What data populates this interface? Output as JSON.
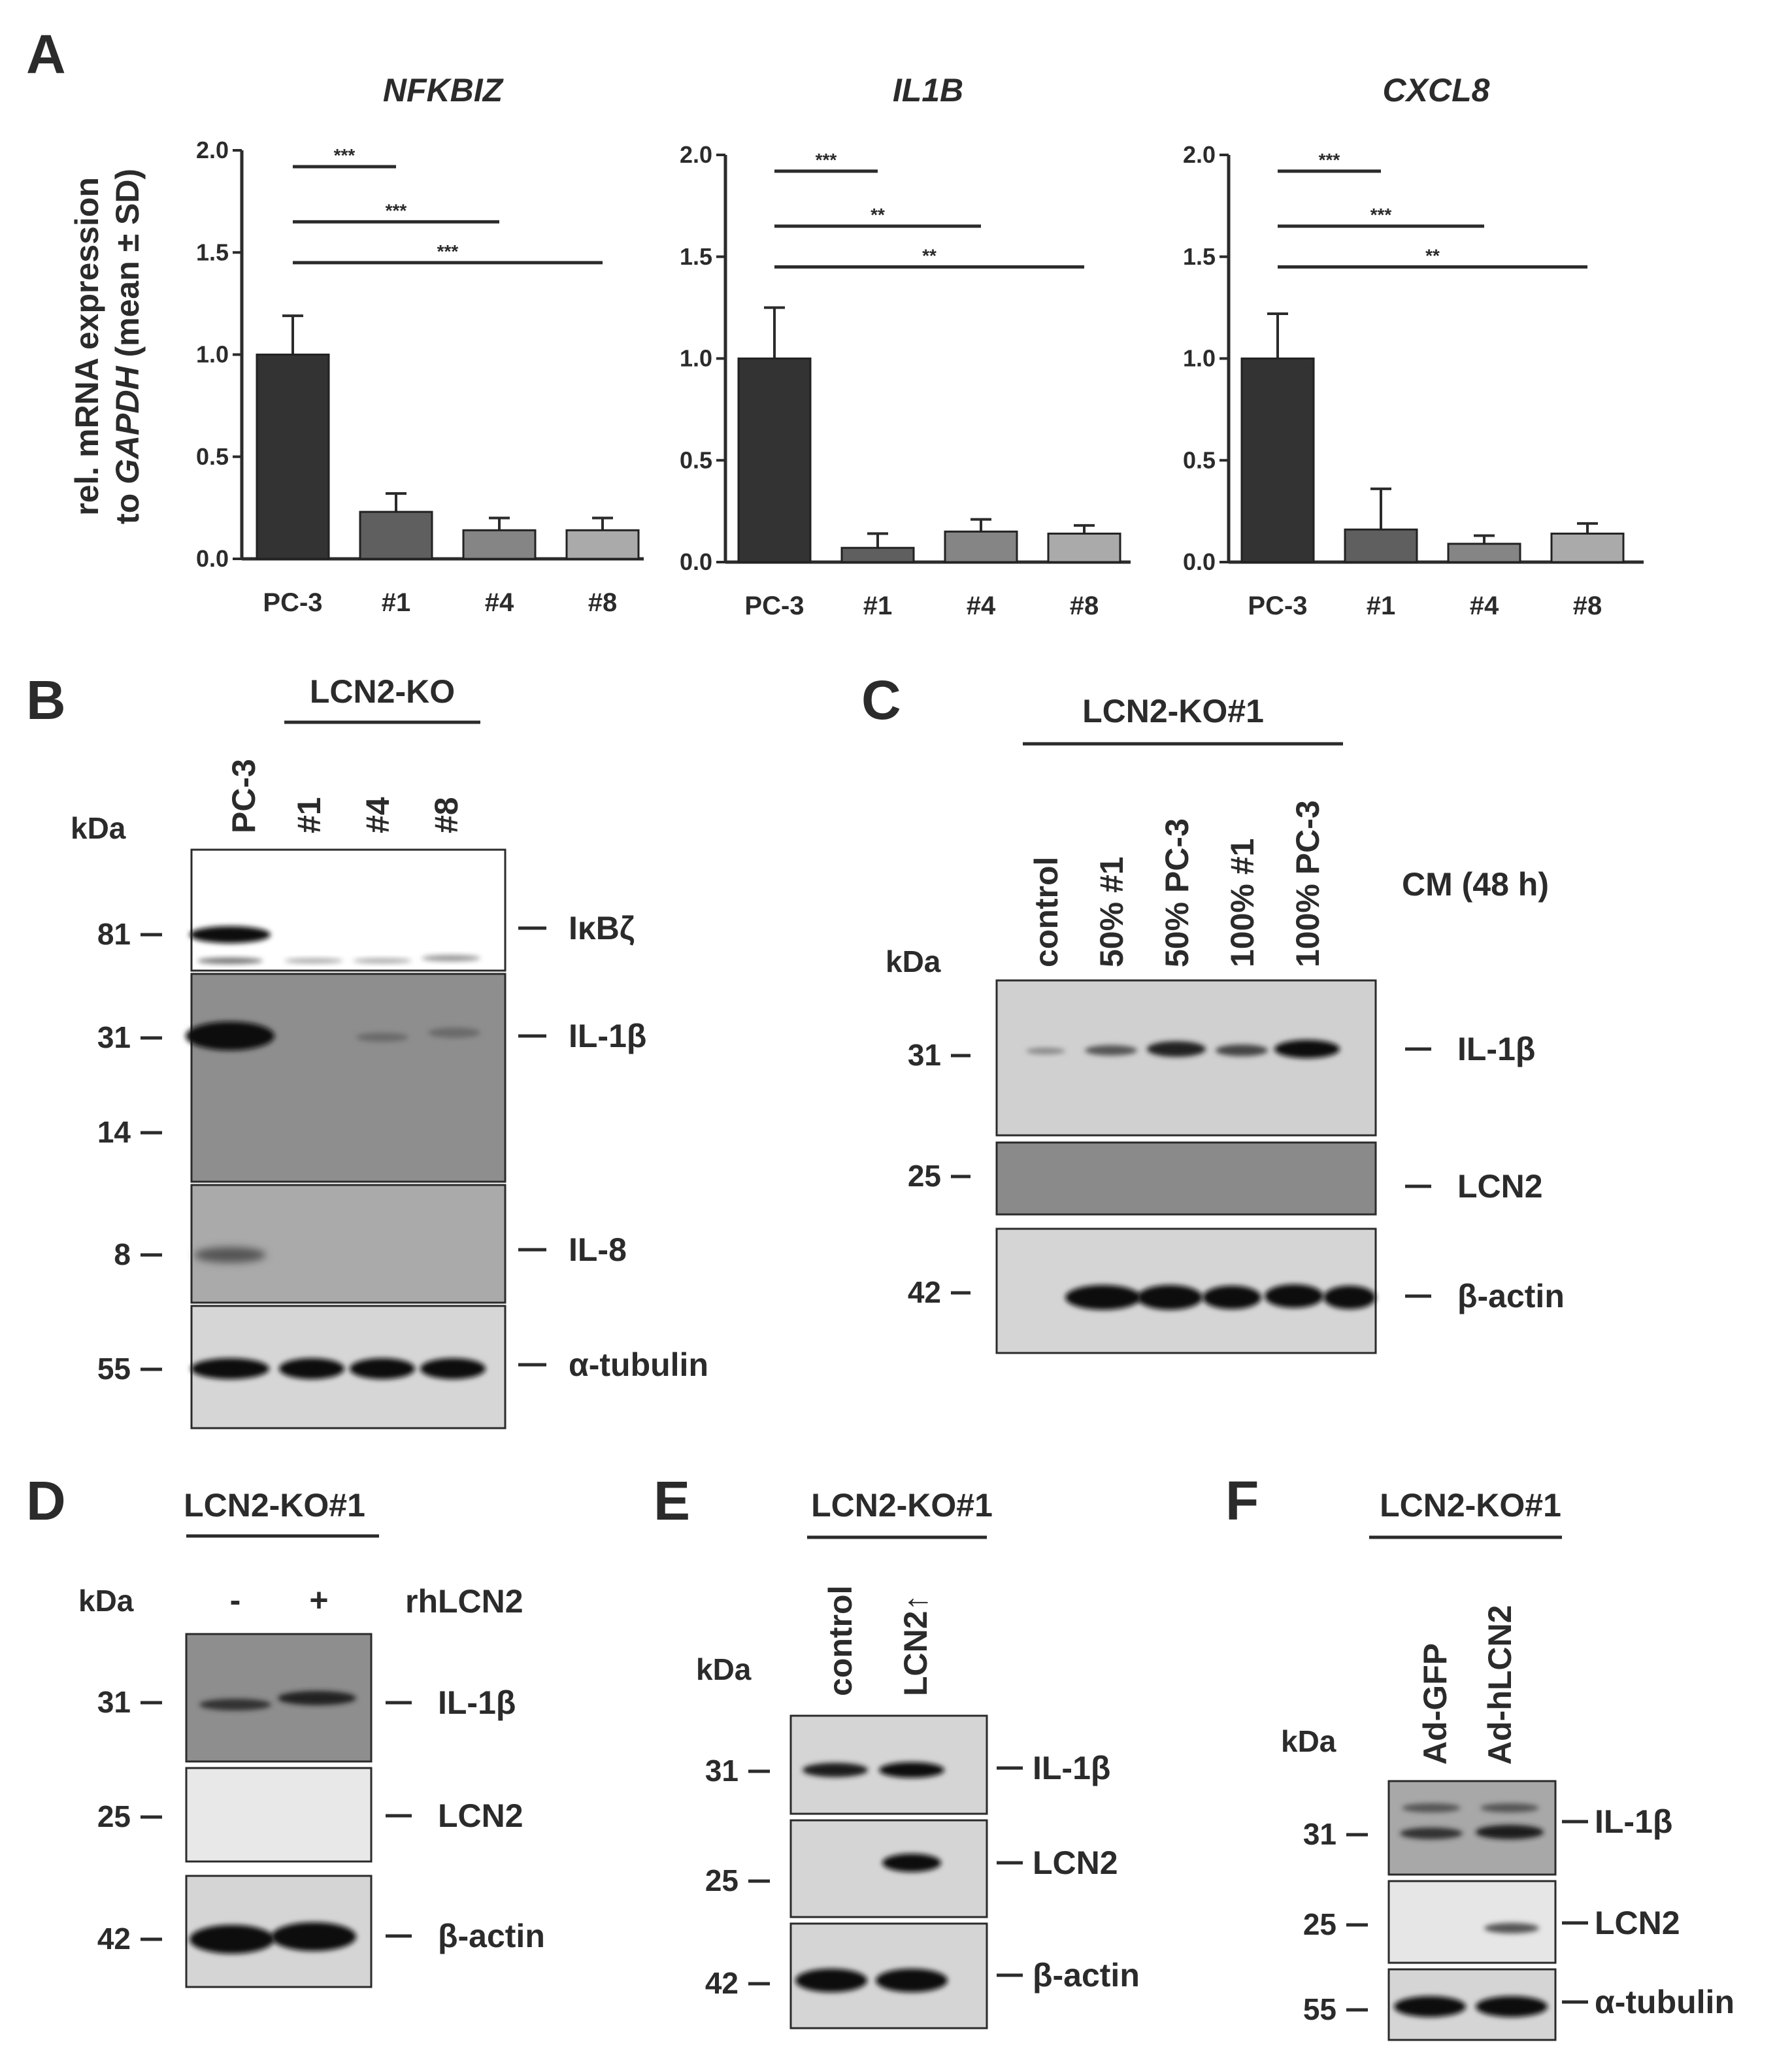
{
  "panelA": {
    "letter": "A",
    "ylabel_line1": "rel. mRNA expression",
    "ylabel_line2_pre": "to ",
    "ylabel_line2_gene": "GAPDH",
    "ylabel_line2_post": " (mean ± SD)"
  },
  "chart_data": [
    {
      "type": "bar",
      "title": "NFKBIZ",
      "ylabel": "rel. mRNA expression to GAPDH (mean ± SD)",
      "categories": [
        "PC-3",
        "#1",
        "#4",
        "#8"
      ],
      "values": [
        1.0,
        0.23,
        0.14,
        0.14
      ],
      "errors": [
        0.19,
        0.09,
        0.06,
        0.06
      ],
      "ylim": [
        0,
        2.0
      ],
      "yticks": [
        "0.0",
        "0.5",
        "1.0",
        "1.5",
        "2.0"
      ],
      "bar_colors": [
        "#333333",
        "#5f5f5f",
        "#858585",
        "#aaaaaa"
      ],
      "significance": [
        {
          "from": 0,
          "to": 1,
          "label": "***"
        },
        {
          "from": 0,
          "to": 2,
          "label": "***"
        },
        {
          "from": 0,
          "to": 3,
          "label": "***"
        }
      ]
    },
    {
      "type": "bar",
      "title": "IL1B",
      "ylabel": "rel. mRNA expression to GAPDH (mean ± SD)",
      "categories": [
        "PC-3",
        "#1",
        "#4",
        "#8"
      ],
      "values": [
        1.0,
        0.07,
        0.15,
        0.14
      ],
      "errors": [
        0.25,
        0.07,
        0.06,
        0.04
      ],
      "ylim": [
        0,
        2.0
      ],
      "yticks": [
        "0.0",
        "0.5",
        "1.0",
        "1.5",
        "2.0"
      ],
      "bar_colors": [
        "#333333",
        "#5f5f5f",
        "#858585",
        "#aaaaaa"
      ],
      "significance": [
        {
          "from": 0,
          "to": 1,
          "label": "***"
        },
        {
          "from": 0,
          "to": 2,
          "label": "**"
        },
        {
          "from": 0,
          "to": 3,
          "label": "**"
        }
      ]
    },
    {
      "type": "bar",
      "title": "CXCL8",
      "ylabel": "rel. mRNA expression to GAPDH (mean ± SD)",
      "categories": [
        "PC-3",
        "#1",
        "#4",
        "#8"
      ],
      "values": [
        1.0,
        0.16,
        0.09,
        0.14
      ],
      "errors": [
        0.22,
        0.2,
        0.04,
        0.05
      ],
      "ylim": [
        0,
        2.0
      ],
      "yticks": [
        "0.0",
        "0.5",
        "1.0",
        "1.5",
        "2.0"
      ],
      "bar_colors": [
        "#333333",
        "#5f5f5f",
        "#858585",
        "#aaaaaa"
      ],
      "significance": [
        {
          "from": 0,
          "to": 1,
          "label": "***"
        },
        {
          "from": 0,
          "to": 2,
          "label": "***"
        },
        {
          "from": 0,
          "to": 3,
          "label": "**"
        }
      ]
    }
  ],
  "panelB": {
    "letter": "B",
    "group": "LCN2-KO",
    "kda": "kDa",
    "lanes": [
      "PC-3",
      "#1",
      "#4",
      "#8"
    ],
    "markers": [
      "81",
      "31",
      "14",
      "8",
      "55"
    ],
    "proteins": [
      "IκBζ",
      "IL-1β",
      "IL-8",
      "α-tubulin"
    ]
  },
  "panelC": {
    "letter": "C",
    "group": "LCN2-KO#1",
    "kda": "kDa",
    "condition": "CM (48 h)",
    "lanes": [
      "control",
      "50% #1",
      "50% PC-3",
      "100% #1",
      "100% PC-3"
    ],
    "markers": [
      "31",
      "25",
      "42"
    ],
    "proteins": [
      "IL-1β",
      "LCN2",
      "β-actin"
    ]
  },
  "panelD": {
    "letter": "D",
    "group": "LCN2-KO#1",
    "kda": "kDa",
    "lanes": [
      "-",
      "+"
    ],
    "treatment": "rhLCN2",
    "markers": [
      "31",
      "25",
      "42"
    ],
    "proteins": [
      "IL-1β",
      "LCN2",
      "β-actin"
    ]
  },
  "panelE": {
    "letter": "E",
    "group": "LCN2-KO#1",
    "kda": "kDa",
    "lanes": [
      "control",
      "LCN2↑"
    ],
    "markers": [
      "31",
      "25",
      "42"
    ],
    "proteins": [
      "IL-1β",
      "LCN2",
      "β-actin"
    ]
  },
  "panelF": {
    "letter": "F",
    "group": "LCN2-KO#1",
    "kda": "kDa",
    "lanes": [
      "Ad-GFP",
      "Ad-hLCN2"
    ],
    "markers": [
      "31",
      "25",
      "55"
    ],
    "proteins": [
      "IL-1β",
      "LCN2",
      "α-tubulin"
    ]
  }
}
